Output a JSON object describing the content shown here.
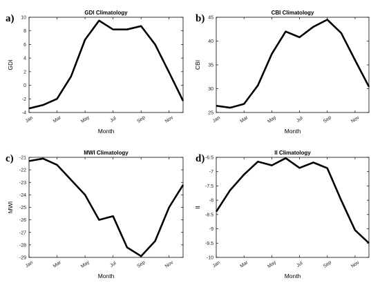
{
  "chart_data": [
    {
      "panel": "a)",
      "type": "line",
      "title": "GDI Climatology",
      "xlabel": "Month",
      "ylabel": "GDI",
      "x_tick_labels": [
        "Jan",
        "Mar",
        "May",
        "Jul",
        "Sep",
        "Nov"
      ],
      "x_tick_positions": [
        1,
        3,
        5,
        7,
        9,
        11
      ],
      "xlim": [
        1,
        12
      ],
      "y_ticks": [
        -4,
        -2,
        0,
        2,
        4,
        6,
        8,
        10
      ],
      "ylim": [
        -4,
        10
      ],
      "grid": false,
      "x": [
        1,
        2,
        3,
        4,
        5,
        6,
        7,
        8,
        9,
        10,
        11,
        12
      ],
      "values": [
        -3.4,
        -2.9,
        -2.0,
        1.3,
        6.7,
        9.5,
        8.2,
        8.2,
        8.7,
        6.0,
        1.9,
        -2.3
      ],
      "color": "#000000"
    },
    {
      "panel": "b)",
      "type": "line",
      "title": "CBI Climatology",
      "xlabel": "Month",
      "ylabel": "CBI",
      "x_tick_labels": [
        "Jan",
        "Mar",
        "May",
        "Jul",
        "Sep",
        "Nov"
      ],
      "x_tick_positions": [
        1,
        3,
        5,
        7,
        9,
        11
      ],
      "xlim": [
        1,
        12
      ],
      "y_ticks": [
        25,
        30,
        35,
        40,
        45
      ],
      "ylim": [
        25,
        45
      ],
      "grid": false,
      "x": [
        1,
        2,
        3,
        4,
        5,
        6,
        7,
        8,
        9,
        10,
        11,
        12
      ],
      "values": [
        26.4,
        26.0,
        26.8,
        30.7,
        37.3,
        42.0,
        40.8,
        43.0,
        44.5,
        41.7,
        36.0,
        30.4
      ],
      "color": "#000000"
    },
    {
      "panel": "c)",
      "type": "line",
      "title": "MWI Climatology",
      "xlabel": "Month",
      "ylabel": "MWI",
      "x_tick_labels": [
        "Jan",
        "Mar",
        "May",
        "Jul",
        "Sep",
        "Nov"
      ],
      "x_tick_positions": [
        1,
        3,
        5,
        7,
        9,
        11
      ],
      "xlim": [
        1,
        12
      ],
      "y_ticks": [
        -29,
        -28,
        -27,
        -26,
        -25,
        -24,
        -23,
        -22,
        -21
      ],
      "ylim": [
        -29,
        -21
      ],
      "grid": false,
      "x": [
        1,
        2,
        3,
        4,
        5,
        6,
        7,
        8,
        9,
        10,
        11,
        12
      ],
      "values": [
        -21.3,
        -21.1,
        -21.6,
        -22.8,
        -24.0,
        -26.0,
        -25.7,
        -28.2,
        -28.9,
        -27.7,
        -25.0,
        -23.2
      ],
      "color": "#000000"
    },
    {
      "panel": "d)",
      "type": "line",
      "title": "II Climatology",
      "xlabel": "Month",
      "ylabel": "II",
      "x_tick_labels": [
        "Jan",
        "Mar",
        "May",
        "Jul",
        "Sep",
        "Nov"
      ],
      "x_tick_positions": [
        1,
        3,
        5,
        7,
        9,
        11
      ],
      "xlim": [
        1,
        12
      ],
      "y_ticks": [
        -10,
        -9.5,
        -9,
        -8.5,
        -8,
        -7.5,
        -7,
        -6.5
      ],
      "ylim": [
        -10,
        -6.5
      ],
      "grid": false,
      "x": [
        1,
        2,
        3,
        4,
        5,
        6,
        7,
        8,
        9,
        10,
        11,
        12
      ],
      "values": [
        -8.4,
        -7.65,
        -7.1,
        -6.65,
        -6.78,
        -6.53,
        -6.87,
        -6.68,
        -6.88,
        -8.0,
        -9.05,
        -9.5
      ],
      "color": "#000000"
    }
  ]
}
